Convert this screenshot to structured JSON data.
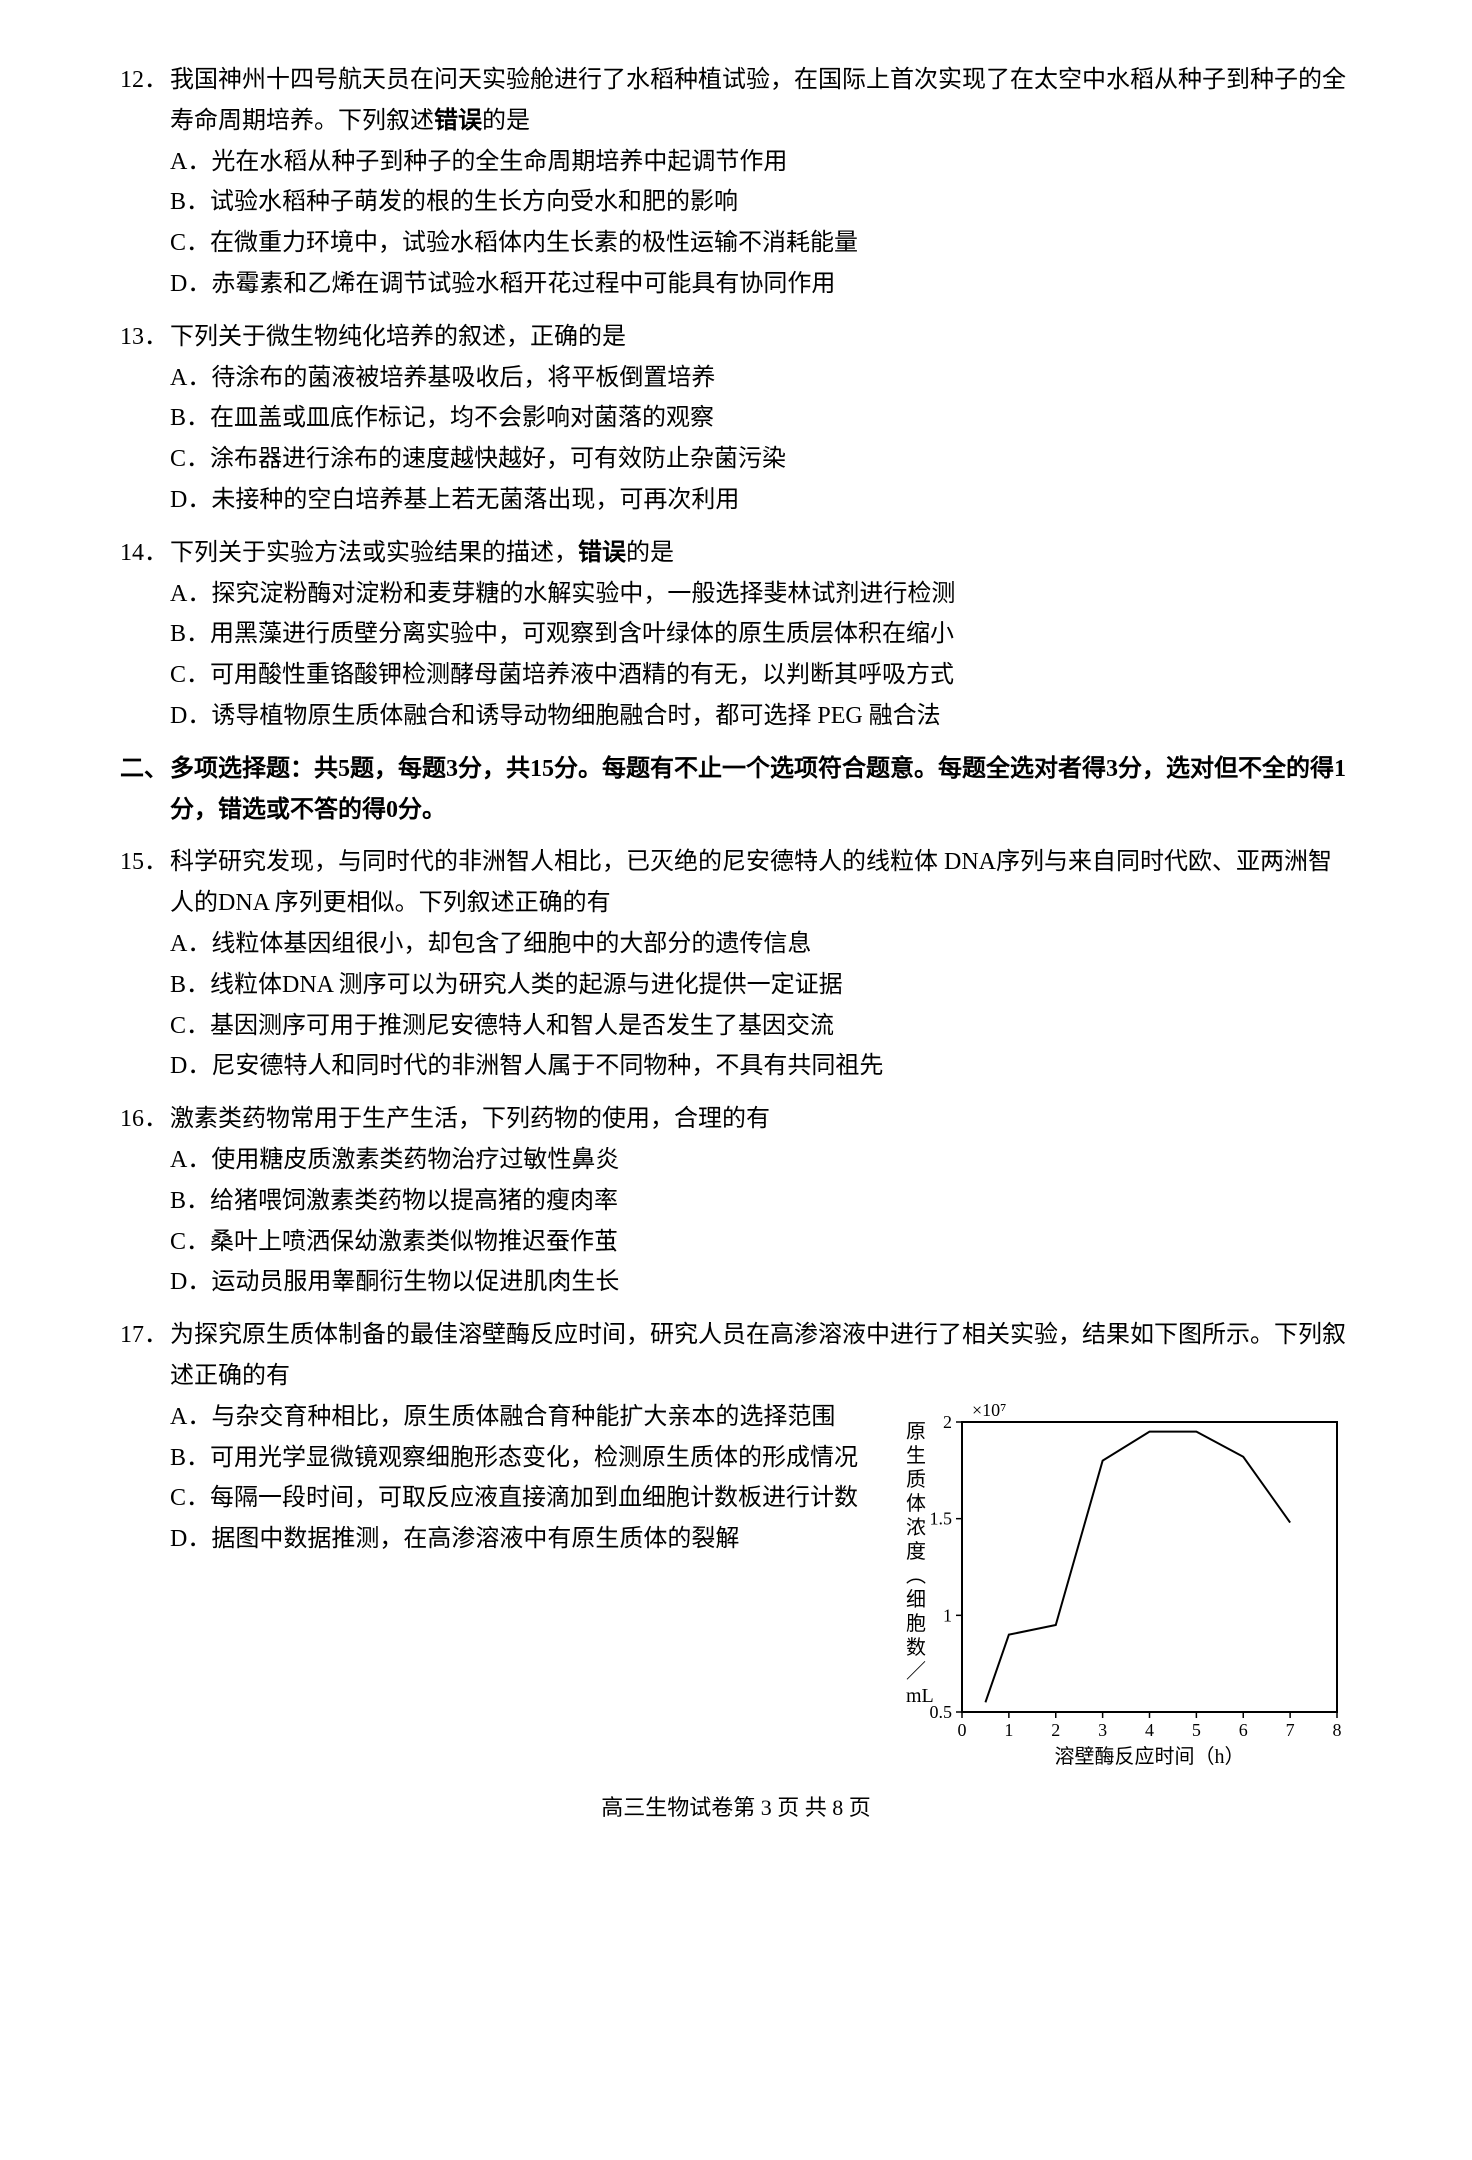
{
  "questions": [
    {
      "num": "12．",
      "stem": "我国神州十四号航天员在问天实验舱进行了水稻种植试验，在国际上首次实现了在太空中水稻从种子到种子的全寿命周期培养。下列叙述",
      "stem_bold": "错误",
      "stem_tail": "的是",
      "options": [
        {
          "label": "A．",
          "text": "光在水稻从种子到种子的全生命周期培养中起调节作用"
        },
        {
          "label": "B．",
          "text": "试验水稻种子萌发的根的生长方向受水和肥的影响"
        },
        {
          "label": "C．",
          "text": "在微重力环境中，试验水稻体内生长素的极性运输不消耗能量"
        },
        {
          "label": "D．",
          "text": "赤霉素和乙烯在调节试验水稻开花过程中可能具有协同作用"
        }
      ]
    },
    {
      "num": "13．",
      "stem": "下列关于微生物纯化培养的叙述，正确的是",
      "options": [
        {
          "label": "A．",
          "text": "待涂布的菌液被培养基吸收后，将平板倒置培养"
        },
        {
          "label": "B．",
          "text": "在皿盖或皿底作标记，均不会影响对菌落的观察"
        },
        {
          "label": "C．",
          "text": "涂布器进行涂布的速度越快越好，可有效防止杂菌污染"
        },
        {
          "label": "D．",
          "text": "未接种的空白培养基上若无菌落出现，可再次利用"
        }
      ]
    },
    {
      "num": "14．",
      "stem": "下列关于实验方法或实验结果的描述，",
      "stem_bold": "错误",
      "stem_tail": "的是",
      "options": [
        {
          "label": "A．",
          "text": "探究淀粉酶对淀粉和麦芽糖的水解实验中，一般选择斐林试剂进行检测"
        },
        {
          "label": "B．",
          "text": "用黑藻进行质壁分离实验中，可观察到含叶绿体的原生质层体积在缩小"
        },
        {
          "label": "C．",
          "text": "可用酸性重铬酸钾检测酵母菌培养液中酒精的有无，以判断其呼吸方式"
        },
        {
          "label": "D．",
          "text": "诱导植物原生质体融合和诱导动物细胞融合时，都可选择 PEG 融合法"
        }
      ]
    }
  ],
  "section2": {
    "label": "二、",
    "text": "多项选择题：共5题，每题3分，共15分。每题有不止一个选项符合题意。每题全选对者得3分，选对但不全的得1分，错选或不答的得0分。"
  },
  "questions2": [
    {
      "num": "15．",
      "stem": "科学研究发现，与同时代的非洲智人相比，已灭绝的尼安德特人的线粒体 DNA序列与来自同时代欧、亚两洲智人的DNA 序列更相似。下列叙述正确的有",
      "options": [
        {
          "label": "A．",
          "text": "线粒体基因组很小，却包含了细胞中的大部分的遗传信息"
        },
        {
          "label": "B．",
          "text": "线粒体DNA 测序可以为研究人类的起源与进化提供一定证据"
        },
        {
          "label": "C．",
          "text": "基因测序可用于推测尼安德特人和智人是否发生了基因交流"
        },
        {
          "label": "D．",
          "text": "尼安德特人和同时代的非洲智人属于不同物种，不具有共同祖先"
        }
      ]
    },
    {
      "num": "16．",
      "stem": "激素类药物常用于生产生活，下列药物的使用，合理的有",
      "options": [
        {
          "label": "A．",
          "text": "使用糖皮质激素类药物治疗过敏性鼻炎"
        },
        {
          "label": "B．",
          "text": "给猪喂饲激素类药物以提高猪的瘦肉率"
        },
        {
          "label": "C．",
          "text": "桑叶上喷洒保幼激素类似物推迟蚕作茧"
        },
        {
          "label": "D．",
          "text": "运动员服用睾酮衍生物以促进肌肉生长"
        }
      ]
    }
  ],
  "q17": {
    "num": "17．",
    "stem": "为探究原生质体制备的最佳溶壁酶反应时间，研究人员在高渗溶液中进行了相关实验，结果如下图所示。下列叙述正确的有",
    "options": [
      {
        "label": "A．",
        "text": "与杂交育种相比，原生质体融合育种能扩大亲本的选择范围"
      },
      {
        "label": "B．",
        "text": "可用光学显微镜观察细胞形态变化，检测原生质体的形成情况"
      },
      {
        "label": "C．",
        "text": "每隔一段时间，可取反应液直接滴加到血细胞计数板进行计数"
      },
      {
        "label": "D．",
        "text": "据图中数据推测，在高渗溶液中有原生质体的裂解"
      }
    ]
  },
  "chart": {
    "type": "line",
    "ylabel_chars": [
      "原",
      "生",
      "质",
      "体",
      "浓",
      "度",
      "︵",
      "细",
      "胞",
      "数",
      "／",
      "mL"
    ],
    "title_exponent": "×10⁷",
    "xlabel": "溶壁酶反应时间（h）",
    "xlim": [
      0,
      8
    ],
    "ylim": [
      0.5,
      2.0
    ],
    "xtick_step": 1,
    "yticks": [
      0.5,
      1,
      1.5,
      2
    ],
    "data_x": [
      0.5,
      1,
      2,
      3,
      4,
      5,
      6,
      7
    ],
    "data_y": [
      0.55,
      0.9,
      0.95,
      1.8,
      1.95,
      1.95,
      1.82,
      1.48
    ],
    "line_color": "#000000",
    "background_color": "#ffffff",
    "axis_color": "#000000",
    "line_width": 2,
    "tick_fontsize": 18,
    "label_fontsize": 20
  },
  "footer": "高三生物试卷第 3 页 共 8 页"
}
